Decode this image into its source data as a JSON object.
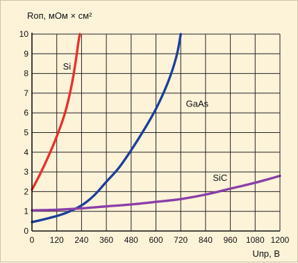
{
  "chart_data": {
    "type": "line",
    "ylabel": "Rоп, мОм × см²",
    "xlabel": "Uпр, В",
    "xlim": [
      0,
      1200
    ],
    "ylim": [
      0,
      10
    ],
    "x_ticks": [
      0,
      120,
      240,
      360,
      480,
      600,
      720,
      840,
      960,
      1080,
      1200
    ],
    "y_ticks": [
      0,
      1,
      2,
      3,
      4,
      5,
      6,
      7,
      8,
      9,
      10
    ],
    "grid": true,
    "series": [
      {
        "name": "Si",
        "color": "#e8312a",
        "points": [
          [
            0,
            2.1
          ],
          [
            40,
            2.9
          ],
          [
            80,
            3.8
          ],
          [
            120,
            4.8
          ],
          [
            160,
            6.0
          ],
          [
            190,
            7.3
          ],
          [
            210,
            8.5
          ],
          [
            225,
            9.6
          ],
          [
            232,
            10.0
          ]
        ]
      },
      {
        "name": "GaAs",
        "color": "#1b3f9a",
        "points": [
          [
            0,
            0.45
          ],
          [
            80,
            0.65
          ],
          [
            160,
            0.9
          ],
          [
            240,
            1.3
          ],
          [
            300,
            1.8
          ],
          [
            360,
            2.5
          ],
          [
            420,
            3.2
          ],
          [
            480,
            4.1
          ],
          [
            540,
            5.1
          ],
          [
            600,
            6.2
          ],
          [
            660,
            7.6
          ],
          [
            700,
            8.9
          ],
          [
            720,
            10.0
          ]
        ]
      },
      {
        "name": "SiC",
        "color": "#8a3fa8",
        "points": [
          [
            0,
            1.05
          ],
          [
            120,
            1.08
          ],
          [
            240,
            1.15
          ],
          [
            360,
            1.25
          ],
          [
            480,
            1.35
          ],
          [
            600,
            1.48
          ],
          [
            720,
            1.62
          ],
          [
            840,
            1.85
          ],
          [
            960,
            2.15
          ],
          [
            1080,
            2.45
          ],
          [
            1200,
            2.8
          ]
        ]
      }
    ],
    "labels": [
      {
        "text": "Si",
        "x": 150,
        "y": 8.2
      },
      {
        "text": "GaAs",
        "x": 745,
        "y": 6.3
      },
      {
        "text": "SiC",
        "x": 875,
        "y": 2.55
      }
    ]
  }
}
